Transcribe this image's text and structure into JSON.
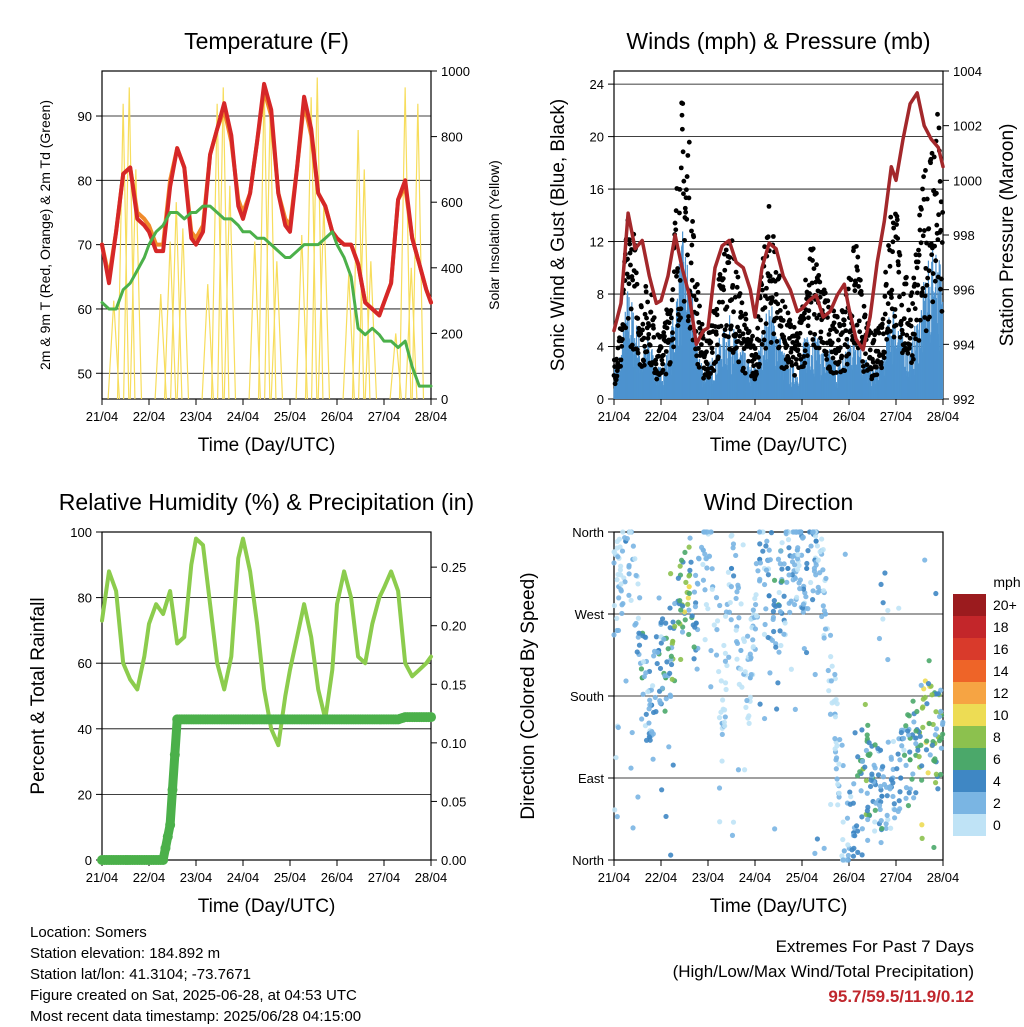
{
  "x_ticks": [
    "21/04",
    "22/04",
    "23/04",
    "24/04",
    "25/04",
    "26/04",
    "27/04",
    "28/04"
  ],
  "x_label": "Time (Day/UTC)",
  "colors": {
    "temp2m": "#d62728",
    "temp9m": "#f08a2a",
    "dewpoint": "#4bb04a",
    "solar": "#f7dd5c",
    "wind": "#4d93cf",
    "gust": "#000000",
    "pressure": "#a3282b",
    "rh": "#8ccc4d",
    "precip": "#4bb04a",
    "extremes": "#c0272d"
  },
  "chart_data": [
    {
      "type": "line",
      "title": "Temperature (F)",
      "xlabel": "Time (Day/UTC)",
      "ylabel": "2m & 9m T (Red, Orange) & 2m Td (Green)",
      "y2label": "Solar Insolation (Yellow)",
      "ylim": [
        46,
        97
      ],
      "y2lim": [
        0,
        1000
      ],
      "yticks": [
        50,
        60,
        70,
        80,
        90
      ],
      "y2ticks": [
        0,
        200,
        400,
        600,
        800,
        1000
      ],
      "x": [
        0,
        0.15,
        0.3,
        0.45,
        0.6,
        0.75,
        0.9,
        1.0,
        1.15,
        1.3,
        1.45,
        1.6,
        1.75,
        1.9,
        2.0,
        2.15,
        2.3,
        2.45,
        2.6,
        2.75,
        2.9,
        3.0,
        3.15,
        3.3,
        3.45,
        3.6,
        3.75,
        3.9,
        4.0,
        4.15,
        4.3,
        4.45,
        4.6,
        4.75,
        4.9,
        5.0,
        5.15,
        5.3,
        5.45,
        5.6,
        5.75,
        5.9,
        6.0,
        6.15,
        6.3,
        6.45,
        6.6,
        6.75,
        6.9,
        7.0
      ],
      "series": [
        {
          "name": "2m T",
          "values": [
            70,
            64,
            72,
            81,
            82,
            74,
            73,
            72,
            69,
            69,
            79,
            85,
            82,
            71,
            70,
            72,
            84,
            88,
            92,
            87,
            76,
            74,
            78,
            86,
            95,
            91,
            78,
            73,
            72,
            82,
            93,
            88,
            78,
            76,
            72,
            71,
            70,
            70,
            67,
            61,
            60,
            59,
            61,
            64,
            77,
            80,
            71,
            67,
            63,
            61
          ]
        },
        {
          "name": "9m T",
          "values": [
            70,
            65,
            72,
            81,
            82,
            75,
            74,
            73,
            70,
            70,
            80,
            85,
            82,
            72,
            71,
            73,
            84,
            88,
            91,
            86,
            77,
            75,
            78,
            86,
            94,
            90,
            78,
            74,
            73,
            82,
            92,
            87,
            78,
            76,
            72,
            71,
            70,
            70,
            67,
            61,
            60,
            59,
            61,
            64,
            77,
            79,
            71,
            67,
            63,
            61
          ]
        },
        {
          "name": "2m Td",
          "values": [
            61,
            60,
            60,
            63,
            64,
            66,
            68,
            70,
            72,
            73,
            75,
            75,
            74,
            75,
            75,
            76,
            76,
            75,
            74,
            74,
            73,
            72,
            72,
            71,
            71,
            70,
            69,
            68,
            68,
            69,
            70,
            70,
            70,
            71,
            72,
            70,
            68,
            65,
            57,
            56,
            57,
            56,
            55,
            55,
            54,
            55,
            51,
            48,
            48,
            48
          ]
        }
      ],
      "solar": {
        "name": "Solar Insolation",
        "x": [
          0.25,
          0.45,
          0.58,
          0.72,
          1.25,
          1.45,
          1.58,
          1.72,
          2.25,
          2.45,
          2.58,
          2.72,
          3.25,
          3.45,
          3.58,
          3.72,
          4.25,
          4.45,
          4.58,
          4.72,
          5.25,
          5.45,
          5.58,
          5.72,
          6.25,
          6.45,
          6.58,
          6.72
        ],
        "values": [
          300,
          900,
          950,
          700,
          320,
          480,
          600,
          520,
          350,
          900,
          950,
          650,
          480,
          960,
          900,
          420,
          500,
          920,
          980,
          600,
          380,
          820,
          700,
          420,
          200,
          950,
          400,
          900
        ]
      }
    },
    {
      "type": "scatter",
      "title": "Winds (mph) & Pressure (mb)",
      "xlabel": "Time (Day/UTC)",
      "ylabel": "Sonic Wind & Gust (Blue, Black)",
      "y2label": "Station Pressure (Maroon)",
      "ylim": [
        0,
        25
      ],
      "y2lim": [
        992,
        1004
      ],
      "yticks": [
        0,
        4,
        8,
        12,
        16,
        20,
        24
      ],
      "y2ticks": [
        992,
        994,
        996,
        998,
        1000,
        1002,
        1004
      ],
      "x": [
        0,
        0.15,
        0.3,
        0.45,
        0.6,
        0.75,
        0.9,
        1.0,
        1.15,
        1.3,
        1.45,
        1.6,
        1.75,
        1.9,
        2.0,
        2.15,
        2.3,
        2.45,
        2.6,
        2.75,
        2.9,
        3.0,
        3.15,
        3.3,
        3.45,
        3.6,
        3.75,
        3.9,
        4.0,
        4.15,
        4.3,
        4.45,
        4.6,
        4.75,
        4.9,
        5.0,
        5.15,
        5.3,
        5.45,
        5.6,
        5.75,
        5.9,
        6.0,
        6.15,
        6.3,
        6.45,
        6.6,
        6.75,
        6.9,
        7.0
      ],
      "series": [
        {
          "name": "Sonic Wind",
          "values": [
            2,
            3,
            7,
            5,
            3,
            4,
            2,
            2,
            3,
            6,
            10,
            8,
            4,
            2,
            2,
            3,
            4,
            5,
            4,
            3,
            2,
            2,
            4,
            6,
            5,
            3,
            2,
            2,
            3,
            5,
            4,
            3,
            3,
            2,
            3,
            4,
            5,
            3,
            2,
            2,
            3,
            6,
            6,
            4,
            3,
            5,
            7,
            9,
            10,
            6
          ]
        },
        {
          "name": "Gust",
          "values": [
            3,
            5,
            12,
            10,
            6,
            8,
            4,
            4,
            6,
            12,
            19,
            16,
            8,
            4,
            4,
            6,
            9,
            11,
            8,
            6,
            4,
            4,
            8,
            12,
            10,
            6,
            5,
            4,
            6,
            10,
            9,
            7,
            6,
            5,
            6,
            8,
            10,
            6,
            4,
            5,
            7,
            13,
            12,
            8,
            7,
            10,
            14,
            17,
            18,
            11
          ]
        },
        {
          "name": "Station Pressure",
          "values": [
            994.5,
            995.5,
            998.8,
            997.5,
            997.8,
            996.5,
            995.5,
            995.6,
            996.5,
            998.0,
            996.8,
            995.8,
            994.0,
            994.5,
            994.6,
            996.8,
            997.6,
            997.8,
            997.0,
            996.8,
            996.0,
            995.0,
            996.8,
            997.7,
            997.5,
            996.5,
            996.0,
            995.2,
            995.3,
            995.6,
            995.8,
            995.0,
            995.2,
            995.8,
            996.2,
            995.3,
            994.2,
            993.8,
            995.0,
            997.0,
            998.5,
            1000.5,
            1000.0,
            1001.5,
            1002.8,
            1003.2,
            1002.0,
            1001.5,
            1001.2,
            1000.5
          ]
        }
      ]
    },
    {
      "type": "line",
      "title": "Relative Humidity (%) & Precipitation (in)",
      "xlabel": "Time (Day/UTC)",
      "ylabel": "Percent & Total Rainfall",
      "ylim": [
        0,
        100
      ],
      "y2lim": [
        0,
        0.28
      ],
      "yticks": [
        0,
        20,
        40,
        60,
        80,
        100
      ],
      "y2ticks": [
        "0.00",
        "0.05",
        "0.10",
        "0.15",
        "0.20",
        "0.25"
      ],
      "x": [
        0,
        0.15,
        0.3,
        0.45,
        0.6,
        0.75,
        0.9,
        1.0,
        1.15,
        1.3,
        1.45,
        1.6,
        1.75,
        1.9,
        2.0,
        2.15,
        2.3,
        2.45,
        2.6,
        2.75,
        2.9,
        3.0,
        3.15,
        3.3,
        3.45,
        3.6,
        3.75,
        3.9,
        4.0,
        4.15,
        4.3,
        4.45,
        4.6,
        4.75,
        4.9,
        5.0,
        5.15,
        5.3,
        5.45,
        5.6,
        5.75,
        5.9,
        6.0,
        6.15,
        6.3,
        6.45,
        6.6,
        6.75,
        6.9,
        7.0
      ],
      "series": [
        {
          "name": "Relative Humidity",
          "values": [
            73,
            88,
            82,
            60,
            55,
            52,
            62,
            72,
            78,
            75,
            82,
            66,
            68,
            90,
            98,
            96,
            78,
            60,
            52,
            62,
            92,
            98,
            88,
            72,
            52,
            40,
            35,
            50,
            58,
            68,
            78,
            68,
            52,
            43,
            58,
            78,
            88,
            80,
            62,
            60,
            72,
            80,
            83,
            88,
            82,
            60,
            56,
            58,
            60,
            62
          ]
        },
        {
          "name": "Total Rainfall",
          "values": [
            0,
            0,
            0,
            0,
            0,
            0,
            0,
            0,
            0,
            0,
            0.03,
            0.12,
            0.12,
            0.12,
            0.12,
            0.12,
            0.12,
            0.12,
            0.12,
            0.12,
            0.12,
            0.12,
            0.12,
            0.12,
            0.12,
            0.12,
            0.12,
            0.12,
            0.12,
            0.12,
            0.12,
            0.12,
            0.12,
            0.12,
            0.12,
            0.12,
            0.12,
            0.12,
            0.12,
            0.12,
            0.12,
            0.12,
            0.12,
            0.12,
            0.12,
            0.122,
            0.122,
            0.122,
            0.122,
            0.122
          ]
        }
      ]
    },
    {
      "type": "scatter",
      "title": "Wind Direction",
      "xlabel": "Time (Day/UTC)",
      "ylabel": "Direction (Colored By Speed)",
      "yticks": [
        "North",
        "East",
        "South",
        "West",
        "North"
      ],
      "ylim": [
        0,
        360
      ],
      "colorbar": {
        "title": "mph",
        "labels": [
          "20+",
          "18",
          "16",
          "14",
          "12",
          "10",
          "8",
          "6",
          "4",
          "2",
          "0"
        ],
        "colors": [
          "#9b1b1e",
          "#c3262a",
          "#d93a2b",
          "#ee6428",
          "#f6a443",
          "#eddc54",
          "#8cc14e",
          "#4ba86a",
          "#3f87c4",
          "#7ab5e3",
          "#bfe3f6"
        ]
      },
      "points": [
        [
          0.1,
          300,
          2
        ],
        [
          0.25,
          350,
          4
        ],
        [
          0.4,
          330,
          3
        ],
        [
          0.6,
          200,
          6
        ],
        [
          0.8,
          170,
          4
        ],
        [
          0.95,
          230,
          5
        ],
        [
          1.1,
          200,
          7
        ],
        [
          1.25,
          240,
          8
        ],
        [
          1.45,
          280,
          9
        ],
        [
          1.6,
          300,
          10
        ],
        [
          1.75,
          260,
          4
        ],
        [
          1.9,
          340,
          3
        ],
        [
          2.1,
          300,
          3
        ],
        [
          2.3,
          150,
          2
        ],
        [
          2.5,
          320,
          4
        ],
        [
          2.7,
          230,
          3
        ],
        [
          2.9,
          200,
          2
        ],
        [
          3.1,
          330,
          4
        ],
        [
          3.3,
          290,
          5
        ],
        [
          3.5,
          280,
          6
        ],
        [
          3.7,
          320,
          4
        ],
        [
          3.9,
          340,
          3
        ],
        [
          4.1,
          320,
          5
        ],
        [
          4.3,
          350,
          4
        ],
        [
          4.5,
          270,
          3
        ],
        [
          4.7,
          160,
          2
        ],
        [
          4.9,
          10,
          3
        ],
        [
          5.1,
          30,
          5
        ],
        [
          5.3,
          100,
          8
        ],
        [
          5.5,
          90,
          6
        ],
        [
          5.7,
          70,
          5
        ],
        [
          5.9,
          80,
          4
        ],
        [
          6.1,
          90,
          5
        ],
        [
          6.3,
          110,
          6
        ],
        [
          6.5,
          140,
          9
        ],
        [
          6.7,
          150,
          10
        ],
        [
          6.9,
          135,
          8
        ]
      ]
    }
  ],
  "info": {
    "location": "Location: Somers",
    "elevation": "Station elevation: 184.892 m",
    "latlon": "Station lat/lon: 41.3104; -73.7671",
    "created": "Figure created on Sat, 2025-06-28, at 04:53 UTC",
    "recent": "Most recent data timestamp: 2025/06/28 04:15:00"
  },
  "extremes": {
    "title": "Extremes For Past 7 Days",
    "subtitle": "(High/Low/Max Wind/Total Precipitation)",
    "values": "95.7/59.5/11.9/0.12"
  }
}
